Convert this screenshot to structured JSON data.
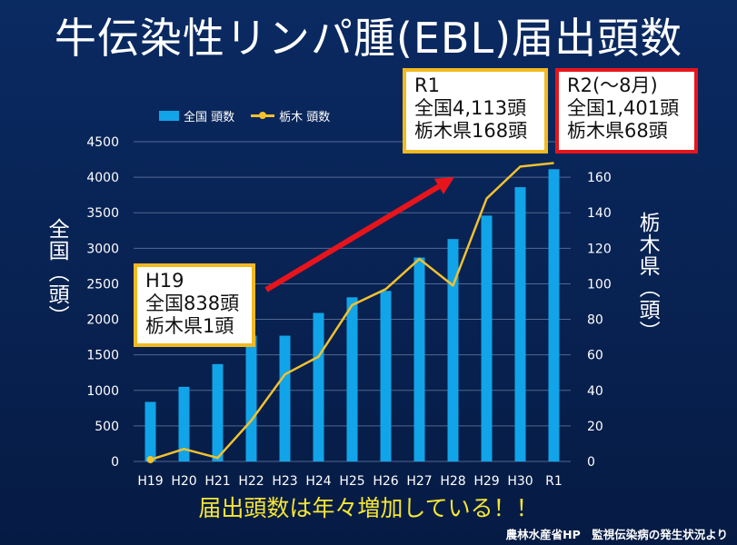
{
  "title": "牛伝染性リンパ腫(EBL)届出頭数",
  "legend": {
    "bar_label": "全国 頭数",
    "line_label": "栃木 頭数"
  },
  "axis_titles": {
    "left": "全国（頭）",
    "right": "栃木県（頭）"
  },
  "callouts": {
    "h19": {
      "lines": [
        "H19",
        "全国838頭",
        "栃木県1頭"
      ],
      "border_color": "#f2b920"
    },
    "r1": {
      "lines": [
        "R1",
        "全国4,113頭",
        "栃木県168頭"
      ],
      "border_color": "#f2b920"
    },
    "r2": {
      "lines": [
        "R2(～8月)",
        "全国1,401頭",
        "栃木県68頭"
      ],
      "border_color": "#e8141c"
    }
  },
  "footer": {
    "message": "届出頭数は年々増加している！！",
    "source": "農林水産省HP　監視伝染病の発生状況より"
  },
  "colors": {
    "background": "#07204f",
    "bar": "#12a4e8",
    "line": "#f2c12e",
    "arrow": "#e8141c",
    "message": "#f6e633"
  },
  "chart_data": {
    "type": "bar",
    "categories": [
      "H19",
      "H20",
      "H21",
      "H22",
      "H23",
      "H24",
      "H25",
      "H26",
      "H27",
      "H28",
      "H29",
      "H30",
      "R1"
    ],
    "series": [
      {
        "name": "全国 頭数",
        "type": "bar",
        "axis": "left",
        "values": [
          838,
          1050,
          1370,
          1770,
          1770,
          2090,
          2310,
          2400,
          2870,
          3130,
          3460,
          3860,
          4113
        ]
      },
      {
        "name": "栃木 頭数",
        "type": "line",
        "axis": "right",
        "values": [
          1,
          7,
          2,
          23,
          49,
          59,
          88,
          97,
          114,
          99,
          148,
          166,
          168
        ]
      }
    ],
    "left_axis": {
      "min": 0,
      "max": 4500,
      "step": 500,
      "ticks": [
        "0",
        "500",
        "1000",
        "1500",
        "2000",
        "2500",
        "3000",
        "3500",
        "4000",
        "4500"
      ]
    },
    "right_axis": {
      "min": 0,
      "max": 180,
      "step": 20,
      "ticks": [
        "0",
        "20",
        "40",
        "60",
        "80",
        "100",
        "120",
        "140",
        "160"
      ]
    },
    "grid": true,
    "legend_position": "top-left"
  }
}
